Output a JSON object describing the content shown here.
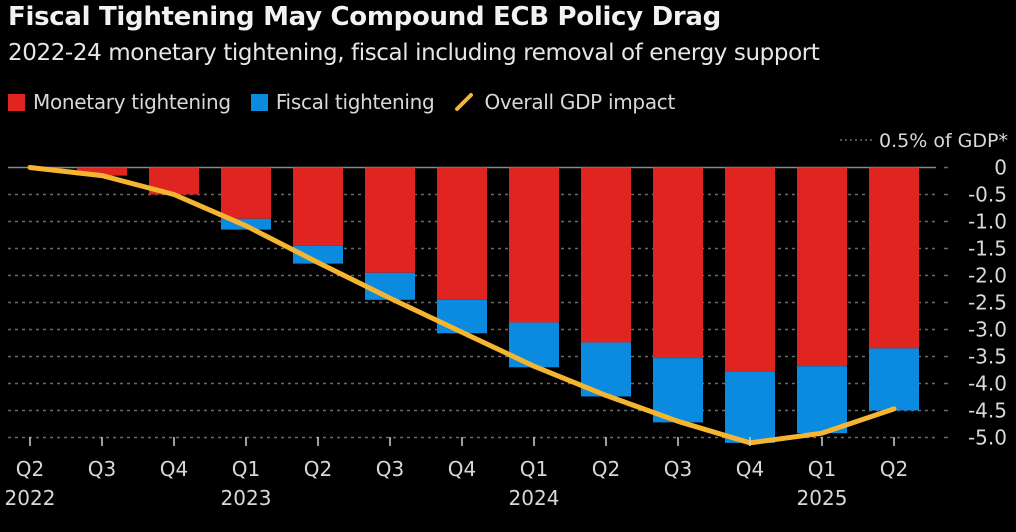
{
  "title": "Fiscal Tightening May Compound ECB Policy Drag",
  "subtitle": "2022-24 monetary tightening, fiscal including removal of energy support",
  "legend": [
    {
      "label": "Monetary tightening",
      "color": "#e02420",
      "kind": "square"
    },
    {
      "label": "Fiscal tightening",
      "color": "#0a8be0",
      "kind": "square"
    },
    {
      "label": "Overall GDP impact",
      "color": "#f5b530",
      "kind": "line"
    }
  ],
  "chart_data": {
    "type": "bar",
    "stacked": true,
    "title": "Fiscal Tightening May Compound ECB Policy Drag",
    "subtitle": "2022-24 monetary tightening, fiscal including removal of energy support",
    "unit_label": "0.5% of GDP*",
    "categories": [
      "Q2 2022",
      "Q3 2022",
      "Q4 2022",
      "Q1 2023",
      "Q2 2023",
      "Q3 2023",
      "Q4 2023",
      "Q1 2024",
      "Q2 2024",
      "Q3 2024",
      "Q4 2024",
      "Q1 2025",
      "Q2 2025"
    ],
    "x_tick_labels": [
      {
        "q": "Q2",
        "year": "2022"
      },
      {
        "q": "Q3",
        "year": ""
      },
      {
        "q": "Q4",
        "year": ""
      },
      {
        "q": "Q1",
        "year": "2023"
      },
      {
        "q": "Q2",
        "year": ""
      },
      {
        "q": "Q3",
        "year": ""
      },
      {
        "q": "Q4",
        "year": ""
      },
      {
        "q": "Q1",
        "year": "2024"
      },
      {
        "q": "Q2",
        "year": ""
      },
      {
        "q": "Q3",
        "year": ""
      },
      {
        "q": "Q4",
        "year": ""
      },
      {
        "q": "Q1",
        "year": "2025"
      },
      {
        "q": "Q2",
        "year": ""
      }
    ],
    "series": [
      {
        "name": "Monetary tightening",
        "type": "bar",
        "color": "#e02420",
        "values": [
          0,
          -0.15,
          -0.5,
          -0.95,
          -1.45,
          -1.95,
          -2.45,
          -2.87,
          -3.24,
          -3.53,
          -3.78,
          -3.68,
          -3.35
        ]
      },
      {
        "name": "Fiscal tightening",
        "type": "bar",
        "color": "#0a8be0",
        "values": [
          0,
          0,
          0,
          -0.2,
          -0.33,
          -0.5,
          -0.62,
          -0.83,
          -1.0,
          -1.19,
          -1.32,
          -1.24,
          -1.15
        ]
      },
      {
        "name": "Overall GDP impact",
        "type": "line",
        "color": "#f5b530",
        "values": [
          0,
          -0.15,
          -0.5,
          -1.08,
          -1.76,
          -2.42,
          -3.05,
          -3.68,
          -4.22,
          -4.7,
          -5.1,
          -4.92,
          -4.47
        ]
      }
    ],
    "y_ticks": [
      "0",
      "-0.5",
      "-1.0",
      "-1.5",
      "-2.0",
      "-2.5",
      "-3.0",
      "-3.5",
      "-4.0",
      "-4.5",
      "-5.0"
    ],
    "ylim": [
      -5.0,
      0
    ],
    "y_axis_side": "right",
    "grid": true,
    "legend_position": "top-left"
  }
}
